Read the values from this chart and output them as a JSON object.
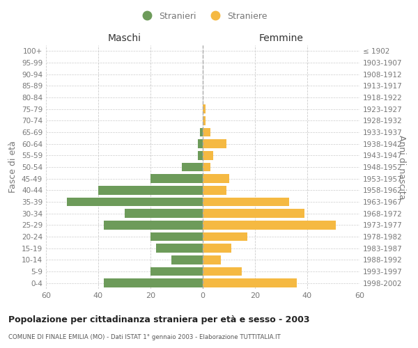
{
  "age_groups": [
    "100+",
    "95-99",
    "90-94",
    "85-89",
    "80-84",
    "75-79",
    "70-74",
    "65-69",
    "60-64",
    "55-59",
    "50-54",
    "45-49",
    "40-44",
    "35-39",
    "30-34",
    "25-29",
    "20-24",
    "15-19",
    "10-14",
    "5-9",
    "0-4"
  ],
  "birth_years": [
    "≤ 1902",
    "1903-1907",
    "1908-1912",
    "1913-1917",
    "1918-1922",
    "1923-1927",
    "1928-1932",
    "1933-1937",
    "1938-1942",
    "1943-1947",
    "1948-1952",
    "1953-1957",
    "1958-1962",
    "1963-1967",
    "1968-1972",
    "1973-1977",
    "1978-1982",
    "1983-1987",
    "1988-1992",
    "1993-1997",
    "1998-2002"
  ],
  "maschi": [
    0,
    0,
    0,
    0,
    0,
    0,
    0,
    1,
    2,
    2,
    8,
    20,
    40,
    52,
    30,
    38,
    20,
    18,
    12,
    20,
    38
  ],
  "femmine": [
    0,
    0,
    0,
    0,
    0,
    1,
    1,
    3,
    9,
    4,
    3,
    10,
    9,
    33,
    39,
    51,
    17,
    11,
    7,
    15,
    36
  ],
  "male_color": "#6d9b5a",
  "female_color": "#f5b942",
  "legend_male": "Stranieri",
  "legend_female": "Straniere",
  "xlabel_left": "Maschi",
  "xlabel_right": "Femmine",
  "ylabel_left": "Fasce di età",
  "ylabel_right": "Anni di nascita",
  "title": "Popolazione per cittadinanza straniera per età e sesso - 2003",
  "subtitle": "COMUNE DI FINALE EMILIA (MO) - Dati ISTAT 1° gennaio 2003 - Elaborazione TUTTITALIA.IT",
  "xlim": 60,
  "bg_color": "#ffffff",
  "grid_color": "#cccccc",
  "text_color": "#777777",
  "dashed_line_color": "#aaaaaa"
}
